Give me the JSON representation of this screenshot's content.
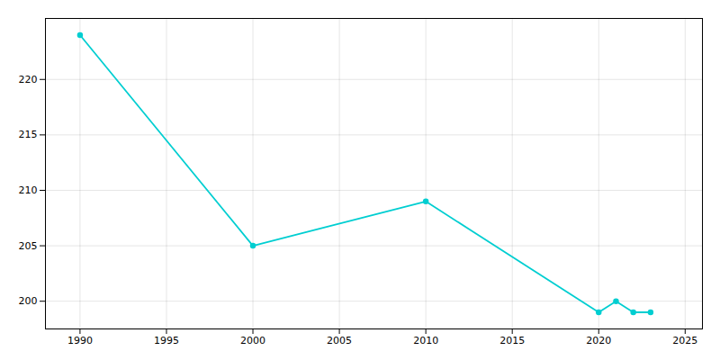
{
  "chart_data": {
    "type": "line",
    "x": [
      1990,
      2000,
      2010,
      2020,
      2021,
      2022,
      2023
    ],
    "values": [
      224,
      205,
      209,
      199,
      200,
      199,
      199
    ],
    "color": "#00CED1",
    "marker": "circle",
    "xlim": [
      1988,
      2026
    ],
    "ylim": [
      197.5,
      225.5
    ],
    "xticks": [
      1990,
      1995,
      2000,
      2005,
      2010,
      2015,
      2020,
      2025
    ],
    "yticks": [
      200,
      205,
      210,
      215,
      220
    ],
    "grid": true
  }
}
